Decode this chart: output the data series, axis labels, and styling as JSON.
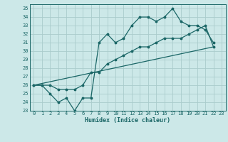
{
  "xlabel": "Humidex (Indice chaleur)",
  "bg_color": "#cce8e8",
  "grid_color": "#aacccc",
  "line_color": "#1a6666",
  "xlim": [
    -0.5,
    23.5
  ],
  "ylim": [
    23,
    35.5
  ],
  "yticks": [
    23,
    24,
    25,
    26,
    27,
    28,
    29,
    30,
    31,
    32,
    33,
    34,
    35
  ],
  "xticks": [
    0,
    1,
    2,
    3,
    4,
    5,
    6,
    7,
    8,
    9,
    10,
    11,
    12,
    13,
    14,
    15,
    16,
    17,
    18,
    19,
    20,
    21,
    22,
    23
  ],
  "line1_x": [
    0,
    1,
    2,
    3,
    4,
    5,
    6,
    7,
    8,
    9,
    10,
    11,
    12,
    13,
    14,
    15,
    16,
    17,
    18,
    19,
    20,
    21,
    22
  ],
  "line1_y": [
    26,
    26,
    25,
    24,
    24.5,
    23,
    24.5,
    24.5,
    31,
    32,
    31,
    31.5,
    33,
    34,
    34,
    33.5,
    34,
    35,
    33.5,
    33,
    33,
    32.5,
    31
  ],
  "line2_x": [
    0,
    1,
    2,
    3,
    4,
    5,
    6,
    7,
    8,
    9,
    10,
    11,
    12,
    13,
    14,
    15,
    16,
    17,
    18,
    19,
    20,
    21,
    22
  ],
  "line2_y": [
    26,
    26,
    26,
    25.5,
    25.5,
    25.5,
    26,
    27.5,
    27.5,
    28.5,
    29,
    29.5,
    30,
    30.5,
    30.5,
    31,
    31.5,
    31.5,
    31.5,
    32,
    32.5,
    33,
    30.5
  ],
  "line3_x": [
    0,
    22
  ],
  "line3_y": [
    26,
    30.5
  ]
}
